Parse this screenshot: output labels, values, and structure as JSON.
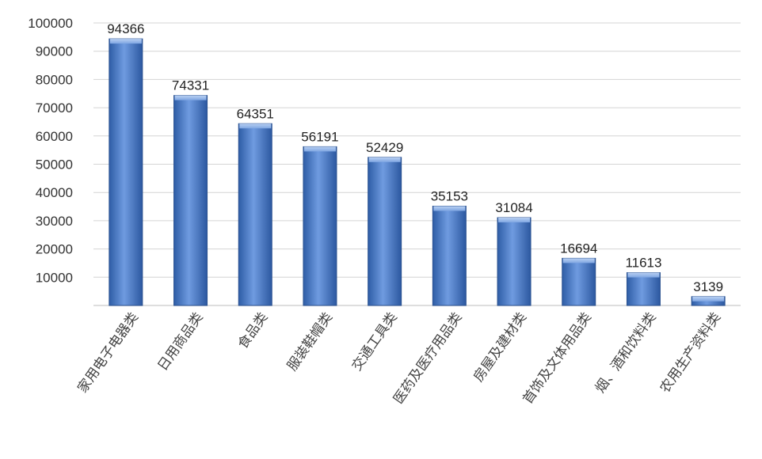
{
  "chart_data": {
    "type": "bar",
    "title": "",
    "xlabel": "",
    "ylabel": "",
    "ylim": [
      0,
      100000
    ],
    "yticks": [
      10000,
      20000,
      30000,
      40000,
      50000,
      60000,
      70000,
      80000,
      90000,
      100000
    ],
    "grid": true,
    "categories": [
      "家用电子电器类",
      "日用商品类",
      "食品类",
      "服装鞋帽类",
      "交通工具类",
      "医药及医疗用品类",
      "房屋及建材类",
      "首饰及文体用品类",
      "烟、酒和饮料类",
      "农用生产资料类"
    ],
    "values": [
      94366,
      74331,
      64351,
      56191,
      52429,
      35153,
      31084,
      16694,
      11613,
      3139
    ],
    "data_labels": [
      "94366",
      "74331",
      "64351",
      "56191",
      "52429",
      "35153",
      "31084",
      "16694",
      "11613",
      "3139"
    ],
    "bar_color": "#4a7cc9",
    "grid_color": "#d4d4d4"
  }
}
